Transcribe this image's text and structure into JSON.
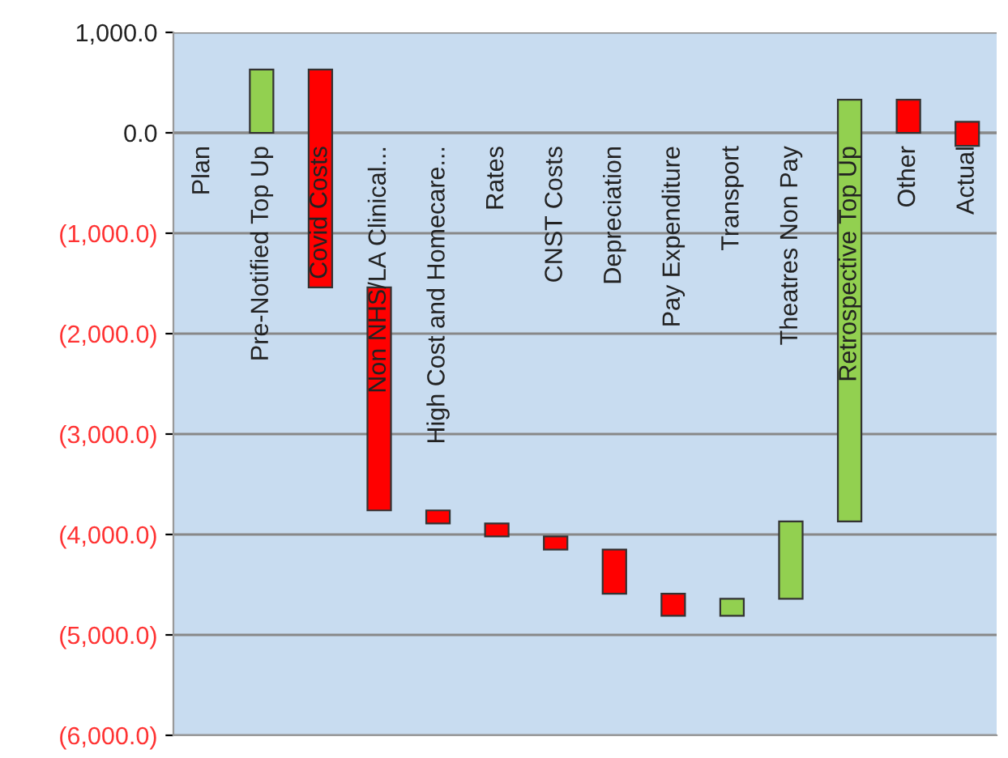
{
  "chart_data": {
    "type": "bar",
    "categories": [
      "Plan",
      "Pre-Notified Top Up",
      "Covid Costs",
      "Non NHS/LA Clinical...",
      "High Cost and Homecare...",
      "Rates",
      "CNST Costs",
      "Depreciation",
      "Pay Expenditure",
      "Transport",
      "Theatres Non Pay",
      "Retrospective Top Up",
      "Other",
      "Actual"
    ],
    "values": [
      null,
      630,
      -2170,
      -2220,
      -130,
      -130,
      -130,
      -440,
      -220,
      170,
      770,
      4200,
      -330,
      -240
    ],
    "base": [
      null,
      0,
      630,
      -1540,
      -3760,
      -3890,
      -4020,
      -4150,
      -4590,
      -4810,
      -4640,
      -3870,
      330,
      110
    ],
    "colors": [
      null,
      "#92d050",
      "#ff0000",
      "#ff0000",
      "#ff0000",
      "#ff0000",
      "#ff0000",
      "#ff0000",
      "#ff0000",
      "#92d050",
      "#92d050",
      "#92d050",
      "#ff0000",
      "#ff0000"
    ],
    "ylim": [
      -6000,
      1000
    ],
    "yticks": [
      {
        "value": 1000,
        "label": "1,000.0"
      },
      {
        "value": 0,
        "label": "0.0"
      },
      {
        "value": -1000,
        "label": "(1,000.0)"
      },
      {
        "value": -2000,
        "label": "(2,000.0)"
      },
      {
        "value": -3000,
        "label": "(3,000.0)"
      },
      {
        "value": -4000,
        "label": "(4,000.0)"
      },
      {
        "value": -5000,
        "label": "(5,000.0)"
      },
      {
        "value": -6000,
        "label": "(6,000.0)"
      }
    ],
    "grid": "y"
  }
}
